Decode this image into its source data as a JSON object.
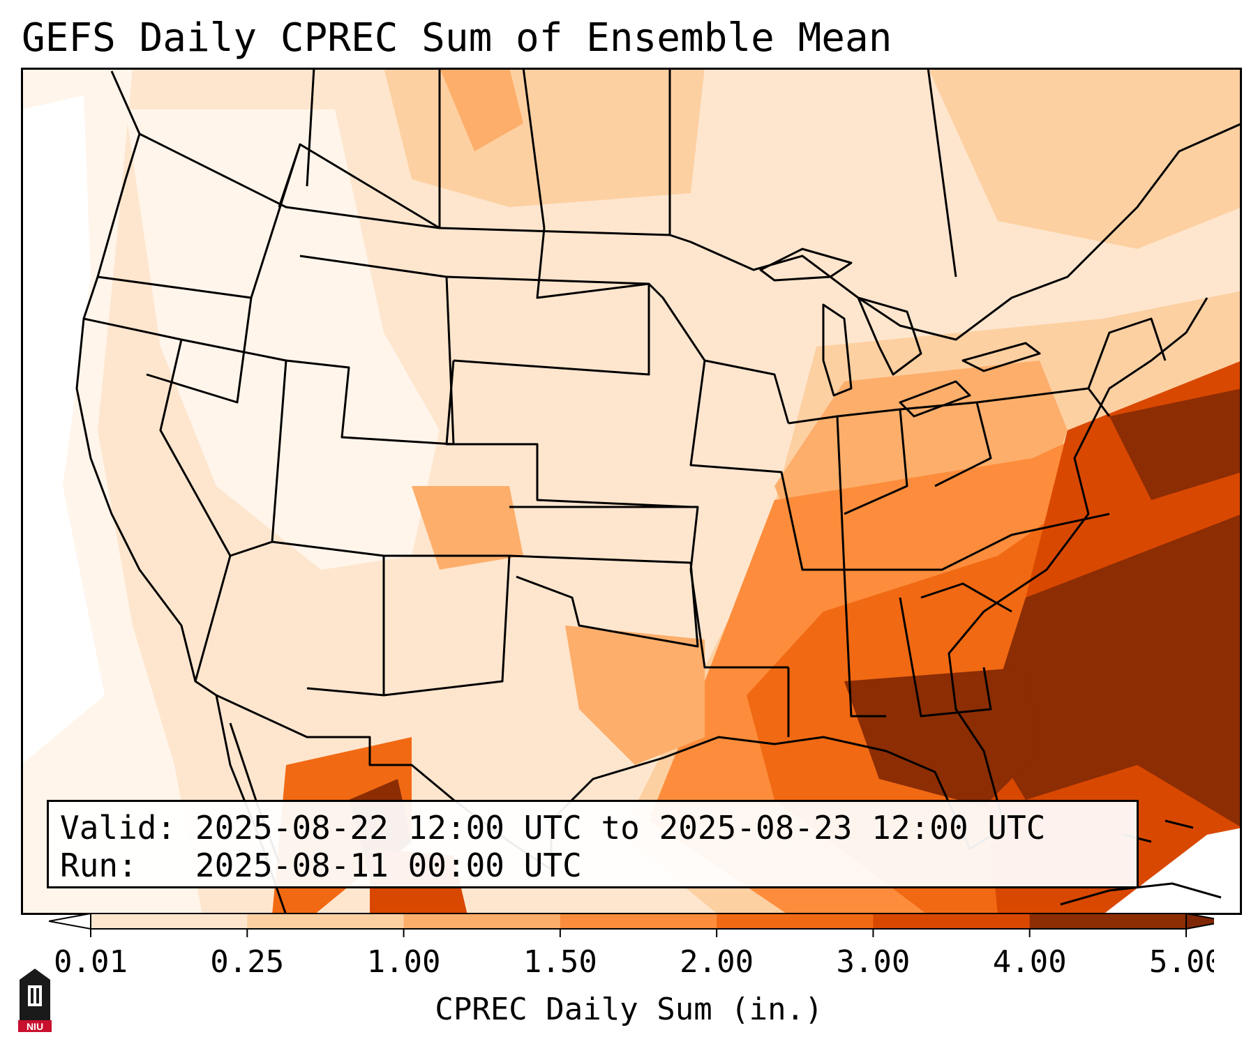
{
  "title": "GEFS Daily CPREC Sum of Ensemble Mean",
  "info": {
    "valid_label": "Valid:",
    "valid_value": "2025-08-22 12:00 UTC to 2025-08-23 12:00 UTC",
    "run_label": "Run:",
    "run_value": "2025-08-11 00:00 UTC"
  },
  "colorbar": {
    "title": "CPREC Daily Sum (in.)",
    "ticks": [
      "0.01",
      "0.25",
      "1.00",
      "1.50",
      "2.00",
      "3.00",
      "4.00",
      "5.00"
    ],
    "colors": [
      "#fff5eb",
      "#fee6ce",
      "#fdd0a2",
      "#fdae6b",
      "#fd8d3c",
      "#f16913",
      "#d94801",
      "#8c2d04"
    ],
    "under_color": "#ffffff",
    "over_color": "#7f2704"
  },
  "logo": {
    "text": "NIU",
    "icon": "university-tower-icon",
    "accent": "#c8102e"
  },
  "map": {
    "projection": "lambert-conformal-conus",
    "basemap_color": "#fff5eb",
    "boundary_color": "#000000"
  }
}
